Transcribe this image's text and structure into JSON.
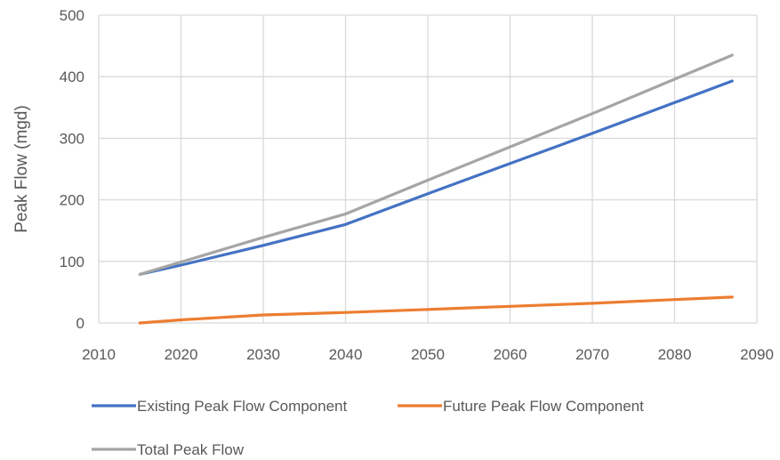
{
  "chart_data": {
    "type": "line",
    "title": "",
    "xlabel": "",
    "ylabel": "Peak Flow (mgd)",
    "xlim": [
      2010,
      2090
    ],
    "ylim": [
      0,
      500
    ],
    "x_ticks": [
      "2010",
      "2020",
      "2030",
      "2040",
      "2050",
      "2060",
      "2070",
      "2080",
      "2090"
    ],
    "y_ticks": [
      "0",
      "100",
      "200",
      "300",
      "400",
      "500"
    ],
    "grid": true,
    "legend_position": "bottom",
    "series": [
      {
        "name": "Existing Peak Flow Component",
        "color": "#4472C4",
        "x": [
          2015,
          2020,
          2030,
          2040,
          2050,
          2060,
          2070,
          2080,
          2087
        ],
        "y": [
          79,
          94,
          126,
          160,
          210,
          259,
          308,
          358,
          393
        ]
      },
      {
        "name": "Future Peak Flow Component",
        "color": "#ED7D31",
        "x": [
          2015,
          2020,
          2030,
          2040,
          2050,
          2060,
          2070,
          2080,
          2087
        ],
        "y": [
          0,
          5,
          13,
          17,
          22,
          27,
          32,
          38,
          42
        ]
      },
      {
        "name": "Total Peak Flow",
        "color": "#A5A5A5",
        "x": [
          2015,
          2020,
          2030,
          2040,
          2050,
          2060,
          2070,
          2080,
          2087
        ],
        "y": [
          79,
          99,
          139,
          177,
          232,
          286,
          340,
          396,
          435
        ]
      }
    ]
  }
}
